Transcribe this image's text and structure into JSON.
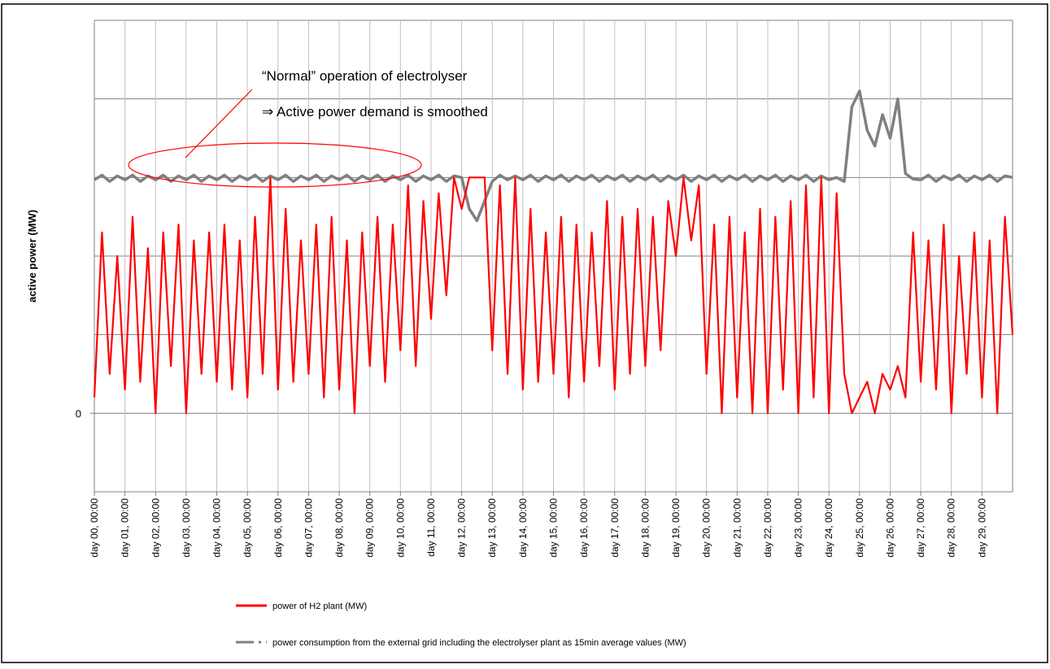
{
  "chart_data": {
    "type": "line",
    "y_label": "active power  (MW)",
    "annotations": [
      "“Normal” operation of electrolyser",
      "⇒ Active power demand is smoothed"
    ],
    "x": [
      0,
      0.25,
      0.5,
      0.75,
      1,
      1.25,
      1.5,
      1.75,
      2,
      2.25,
      2.5,
      2.75,
      3,
      3.25,
      3.5,
      3.75,
      4,
      4.25,
      4.5,
      4.75,
      5,
      5.25,
      5.5,
      5.75,
      6,
      6.25,
      6.5,
      6.75,
      7,
      7.25,
      7.5,
      7.75,
      8,
      8.25,
      8.5,
      8.75,
      9,
      9.25,
      9.5,
      9.75,
      10,
      10.25,
      10.5,
      10.75,
      11,
      11.25,
      11.5,
      11.75,
      12,
      12.25,
      12.5,
      12.75,
      13,
      13.25,
      13.5,
      13.75,
      14,
      14.25,
      14.5,
      14.75,
      15,
      15.25,
      15.5,
      15.75,
      16,
      16.25,
      16.5,
      16.75,
      17,
      17.25,
      17.5,
      17.75,
      18,
      18.25,
      18.5,
      18.75,
      19,
      19.25,
      19.5,
      19.75,
      20,
      20.25,
      20.5,
      20.75,
      21,
      21.25,
      21.5,
      21.75,
      22,
      22.25,
      22.5,
      22.75,
      23,
      23.25,
      23.5,
      23.75,
      24,
      24.25,
      24.5,
      24.75,
      25,
      25.25,
      25.5,
      25.75,
      26,
      26.25,
      26.5,
      26.75,
      27,
      27.25,
      27.5,
      27.75,
      28,
      28.25,
      28.5,
      28.75,
      29,
      29.25,
      29.5,
      29.75,
      30
    ],
    "xlim": [
      0,
      30
    ],
    "xticks": [
      {
        "value": 0,
        "label": "day 00, 00:00"
      },
      {
        "value": 1,
        "label": "day 01, 00:00"
      },
      {
        "value": 2,
        "label": "day 02, 00:00"
      },
      {
        "value": 3,
        "label": "day 03, 00:00"
      },
      {
        "value": 4,
        "label": "day 04, 00:00"
      },
      {
        "value": 5,
        "label": "day 05, 00:00"
      },
      {
        "value": 6,
        "label": "day 06, 00:00"
      },
      {
        "value": 7,
        "label": "day 07, 00:00"
      },
      {
        "value": 8,
        "label": "day 08, 00:00"
      },
      {
        "value": 9,
        "label": "day 09, 00:00"
      },
      {
        "value": 10,
        "label": "day 10, 00:00"
      },
      {
        "value": 11,
        "label": "day 11, 00:00"
      },
      {
        "value": 12,
        "label": "day 12, 00:00"
      },
      {
        "value": 13,
        "label": "day 13, 00:00"
      },
      {
        "value": 14,
        "label": "day 14, 00:00"
      },
      {
        "value": 15,
        "label": "day 15, 00:00"
      },
      {
        "value": 16,
        "label": "day 16, 00:00"
      },
      {
        "value": 17,
        "label": "day 17, 00:00"
      },
      {
        "value": 18,
        "label": "day 18, 00:00"
      },
      {
        "value": 19,
        "label": "day 19, 00:00"
      },
      {
        "value": 20,
        "label": "day 20, 00:00"
      },
      {
        "value": 21,
        "label": "day 21, 00:00"
      },
      {
        "value": 22,
        "label": "day 22, 00:00"
      },
      {
        "value": 23,
        "label": "day 23, 00:00"
      },
      {
        "value": 24,
        "label": "day 24, 00:00"
      },
      {
        "value": 25,
        "label": "day 25, 00:00"
      },
      {
        "value": 26,
        "label": "day 26, 00:00"
      },
      {
        "value": 27,
        "label": "day 27, 00:00"
      },
      {
        "value": 28,
        "label": "day 28, 00:00"
      },
      {
        "value": 29,
        "label": "day 29, 00:00"
      }
    ],
    "ylim": [
      -1,
      5
    ],
    "yticks": [
      0
    ],
    "ygrid": [
      -1,
      0,
      1,
      2,
      3,
      4,
      5
    ],
    "grid": true,
    "series": [
      {
        "name": "power of  H2 plant (MW)",
        "color": "#ff0000",
        "values": [
          0.2,
          2.3,
          0.5,
          2.0,
          0.3,
          2.5,
          0.4,
          2.1,
          0,
          2.3,
          0.6,
          2.4,
          0,
          2.2,
          0.5,
          2.3,
          0.4,
          2.4,
          0.3,
          2.2,
          0.2,
          2.5,
          0.5,
          3.0,
          0.3,
          2.6,
          0.4,
          2.2,
          0.5,
          2.4,
          0.2,
          2.5,
          0.3,
          2.2,
          0,
          2.3,
          0.6,
          2.5,
          0.4,
          2.4,
          0.8,
          2.9,
          0.6,
          2.7,
          1.2,
          2.8,
          1.5,
          3.0,
          2.6,
          3.0,
          3.0,
          3.0,
          0.8,
          2.9,
          0.5,
          3.0,
          0.3,
          2.6,
          0.4,
          2.3,
          0.5,
          2.5,
          0.2,
          2.4,
          0.4,
          2.3,
          0.6,
          2.7,
          0.3,
          2.5,
          0.5,
          2.6,
          0.6,
          2.5,
          0.8,
          2.7,
          2.0,
          3.0,
          2.2,
          2.9,
          0.5,
          2.4,
          0,
          2.5,
          0.2,
          2.3,
          0,
          2.6,
          0,
          2.5,
          0.3,
          2.7,
          0,
          2.9,
          0.2,
          3.0,
          0,
          2.8,
          0.5,
          0,
          0.2,
          0.4,
          0,
          0.5,
          0.3,
          0.6,
          0.2,
          2.3,
          0.4,
          2.2,
          0.3,
          2.4,
          0,
          2.0,
          0.5,
          2.3,
          0.2,
          2.2,
          0,
          2.5,
          1.0
        ]
      },
      {
        "name": "power consumption from the external grid including the electrolyser plant as 15min average values (MW)",
        "color": "#808080",
        "values": [
          2.97,
          3.03,
          2.95,
          3.02,
          2.97,
          3.03,
          2.95,
          3.02,
          2.97,
          3.03,
          2.95,
          3.02,
          2.97,
          3.03,
          2.95,
          3.02,
          2.97,
          3.03,
          2.95,
          3.02,
          2.97,
          3.03,
          2.95,
          3.02,
          2.97,
          3.03,
          2.95,
          3.02,
          2.97,
          3.03,
          2.95,
          3.02,
          2.97,
          3.03,
          2.95,
          3.02,
          2.97,
          3.03,
          2.95,
          3.02,
          2.97,
          3.03,
          2.95,
          3.02,
          2.97,
          3.03,
          2.95,
          3.02,
          3.0,
          2.6,
          2.45,
          2.7,
          2.95,
          3.03,
          2.97,
          3.02,
          2.97,
          3.03,
          2.95,
          3.02,
          2.97,
          3.03,
          2.95,
          3.02,
          2.97,
          3.03,
          2.95,
          3.02,
          2.97,
          3.03,
          2.95,
          3.02,
          2.97,
          3.03,
          2.95,
          3.02,
          2.97,
          3.03,
          2.95,
          3.02,
          2.97,
          3.03,
          2.95,
          3.02,
          2.97,
          3.03,
          2.95,
          3.02,
          2.97,
          3.03,
          2.95,
          3.02,
          2.97,
          3.03,
          2.95,
          3.02,
          2.97,
          3.0,
          2.95,
          3.9,
          4.1,
          3.6,
          3.4,
          3.8,
          3.5,
          4.0,
          3.05,
          2.98,
          2.97,
          3.03,
          2.95,
          3.02,
          2.97,
          3.03,
          2.95,
          3.02,
          2.97,
          3.03,
          2.95,
          3.02,
          3.0
        ]
      }
    ]
  }
}
